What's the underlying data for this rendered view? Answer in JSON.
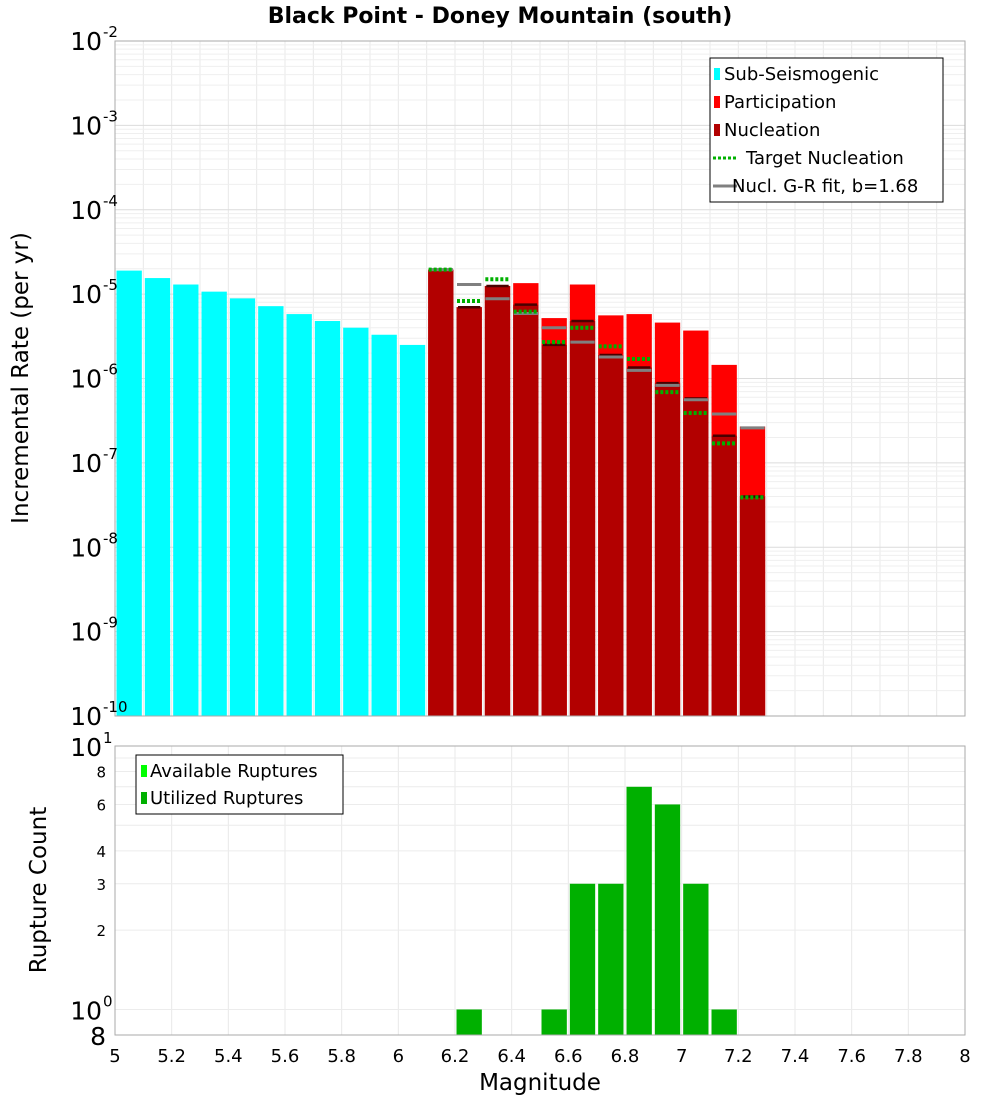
{
  "chart_data": [
    {
      "type": "bar",
      "title": "Black Point - Doney Mountain (south)",
      "xlabel": "",
      "ylabel": "Incremental Rate (per yr)",
      "xlim": [
        5,
        8
      ],
      "ylim": [
        1e-10,
        0.01
      ],
      "yscale": "log",
      "bin_width": 0.1,
      "y_tick_exponents": [
        -10,
        -9,
        -8,
        -7,
        -6,
        -5,
        -4,
        -3,
        -2
      ],
      "y_tick_base": "10",
      "legend_position": "top-right",
      "series": [
        {
          "name": "Sub-Seismogenic",
          "color": "#00ffff",
          "kind": "bar",
          "x": [
            5.05,
            5.15,
            5.25,
            5.35,
            5.45,
            5.55,
            5.65,
            5.75,
            5.85,
            5.95,
            6.05
          ],
          "values": [
            1.9e-05,
            1.55e-05,
            1.3e-05,
            1.07e-05,
            8.9e-06,
            7.2e-06,
            5.8e-06,
            4.8e-06,
            4e-06,
            3.3e-06,
            2.5e-06
          ]
        },
        {
          "name": "Participation",
          "color": "#ff0000",
          "kind": "bar",
          "x": [
            6.15,
            6.25,
            6.35,
            6.45,
            6.55,
            6.65,
            6.75,
            6.85,
            6.95,
            7.05,
            7.15,
            7.25
          ],
          "values": [
            1.95e-05,
            7e-06,
            1.25e-05,
            1.35e-05,
            5.2e-06,
            1.3e-05,
            5.6e-06,
            5.8e-06,
            4.6e-06,
            3.7e-06,
            1.45e-06,
            2.7e-07
          ]
        },
        {
          "name": "Nucleation",
          "color": "#b20000",
          "kind": "bar",
          "x": [
            6.15,
            6.25,
            6.35,
            6.45,
            6.55,
            6.65,
            6.75,
            6.85,
            6.95,
            7.05,
            7.15,
            7.25
          ],
          "values": [
            1.95e-05,
            7e-06,
            1.25e-05,
            7.5e-06,
            2.5e-06,
            4.8e-06,
            1.9e-06,
            1.35e-06,
            8.8e-07,
            5.8e-07,
            2.1e-07,
            4e-08
          ]
        },
        {
          "name": "Target Nucleation",
          "color": "#00b000",
          "kind": "dotted-level",
          "x": [
            6.15,
            6.25,
            6.35,
            6.45,
            6.55,
            6.65,
            6.75,
            6.85,
            6.95,
            7.05,
            7.15,
            7.25
          ],
          "values": [
            1.95e-05,
            8.3e-06,
            1.5e-05,
            6.2e-06,
            2.7e-06,
            4e-06,
            2.4e-06,
            1.7e-06,
            6.9e-07,
            3.9e-07,
            1.7e-07,
            3.9e-08
          ]
        },
        {
          "name": "Nucl. G-R fit, b=1.68",
          "color": "#808080",
          "kind": "solid-level",
          "x": [
            6.15,
            6.25,
            6.35,
            6.45,
            6.55,
            6.65,
            6.75,
            6.85,
            6.95,
            7.05,
            7.15,
            7.25
          ],
          "values": [
            1.95e-05,
            1.3e-05,
            8.8e-06,
            5.9e-06,
            4e-06,
            2.7e-06,
            1.8e-06,
            1.25e-06,
            8.3e-07,
            5.6e-07,
            3.8e-07,
            2.6e-07
          ]
        }
      ]
    },
    {
      "type": "bar",
      "title": "",
      "xlabel": "Magnitude",
      "ylabel": "Rupture Count",
      "xlim": [
        5,
        8
      ],
      "ylim": [
        0.8,
        10
      ],
      "yscale": "log",
      "bin_width": 0.1,
      "x_ticks": [
        "5",
        "5.2",
        "5.4",
        "5.6",
        "5.8",
        "6",
        "6.2",
        "6.4",
        "6.6",
        "6.8",
        "7",
        "7.2",
        "7.4",
        "7.6",
        "7.8",
        "8"
      ],
      "y_tick_major_labels": [
        {
          "base": "10",
          "exp": "1",
          "value": 10
        },
        {
          "base": "10",
          "exp": "0",
          "value": 1
        }
      ],
      "y_tick_minor_labels": [
        "8",
        "6",
        "4",
        "3",
        "2"
      ],
      "y_tick_minor_values": [
        8,
        6,
        4,
        3,
        2
      ],
      "y_bottom_label": "8",
      "legend_position": "top-left",
      "series": [
        {
          "name": "Available Ruptures",
          "color": "#00ff00",
          "kind": "bar",
          "x": [],
          "values": []
        },
        {
          "name": "Utilized Ruptures",
          "color": "#00b000",
          "kind": "bar",
          "x": [
            6.25,
            6.55,
            6.65,
            6.75,
            6.85,
            6.95,
            7.05,
            7.15
          ],
          "values": [
            1,
            1,
            3,
            3,
            7,
            6,
            3,
            1
          ]
        }
      ]
    }
  ]
}
